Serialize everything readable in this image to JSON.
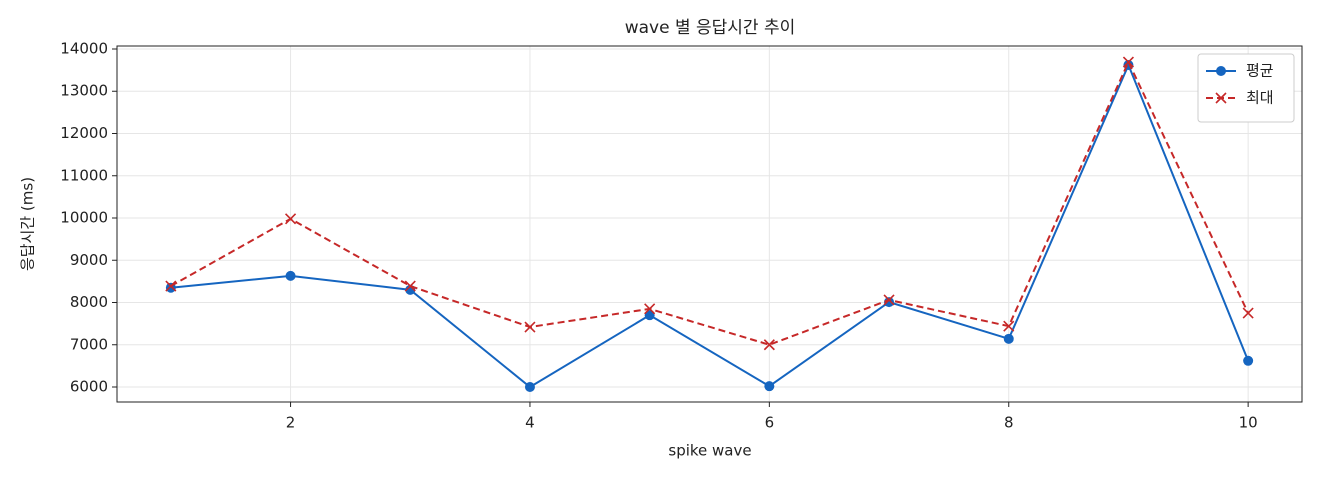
{
  "chart_data": {
    "type": "line",
    "title": "wave 별 응답시간 추이",
    "x_label": "spike wave",
    "y_label": "응답시간 (ms)",
    "x": [
      1,
      2,
      3,
      4,
      5,
      6,
      7,
      8,
      9,
      10
    ],
    "series": [
      {
        "name": "평균",
        "color": "#1565c0",
        "marker": "circle",
        "dashed": false,
        "values": [
          8350,
          8630,
          8300,
          6000,
          7700,
          6020,
          8010,
          7140,
          13620,
          6620
        ]
      },
      {
        "name": "최대",
        "color": "#c62828",
        "marker": "x",
        "dashed": true,
        "values": [
          8390,
          9980,
          8390,
          7420,
          7850,
          7000,
          8060,
          7440,
          13690,
          7750
        ]
      }
    ],
    "xlim": [
      0.55,
      10.45
    ],
    "ylim": [
      5645,
      14071
    ],
    "xticks": [
      2,
      4,
      6,
      8,
      10
    ],
    "yticks": [
      6000,
      7000,
      8000,
      9000,
      10000,
      11000,
      12000,
      13000,
      14000
    ],
    "grid": true,
    "legend": "upper right"
  }
}
